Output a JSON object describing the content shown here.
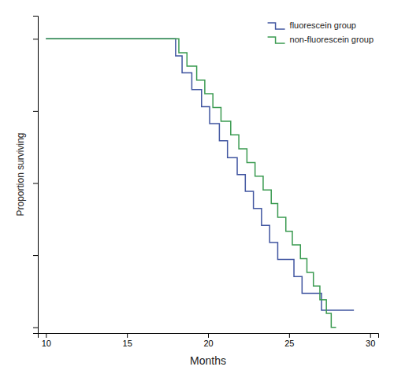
{
  "chart_data": {
    "type": "step",
    "xlabel": "Months",
    "ylabel": "Proportion surviving",
    "xlim": [
      9.5,
      30.5
    ],
    "ylim": [
      -0.02,
      1.08
    ],
    "xticks": [
      10,
      15,
      20,
      25,
      30
    ],
    "yticks": [
      0.0,
      0.25,
      0.5,
      0.75,
      1.0
    ],
    "tick_labels": "x",
    "grid": false,
    "legend": "upper-right",
    "series": [
      {
        "name": "fluorescein group",
        "color": "#4055a0",
        "line_style": "solid",
        "x": [
          10.0,
          17.8,
          18.0,
          18.4,
          19.0,
          19.6,
          20.1,
          20.7,
          21.2,
          21.8,
          22.3,
          22.8,
          23.3,
          23.8,
          24.3,
          24.8,
          25.3,
          25.8,
          26.3,
          27.0,
          27.5,
          28.0,
          29.0
        ],
        "values": [
          1.0,
          1.0,
          0.941,
          0.882,
          0.824,
          0.765,
          0.706,
          0.647,
          0.588,
          0.529,
          0.471,
          0.412,
          0.353,
          0.294,
          0.235,
          0.235,
          0.176,
          0.118,
          0.118,
          0.059,
          0.059,
          0.059,
          0.059
        ]
      },
      {
        "name": "non-fluorescein group",
        "color": "#3a9a50",
        "line_style": "solid",
        "x": [
          10.0,
          17.8,
          18.2,
          18.7,
          19.3,
          19.8,
          20.3,
          20.8,
          21.4,
          21.9,
          22.4,
          22.9,
          23.4,
          23.9,
          24.3,
          24.8,
          25.2,
          25.7,
          26.1,
          26.5,
          26.9,
          27.3,
          27.6,
          27.9
        ],
        "values": [
          1.0,
          1.0,
          0.952,
          0.905,
          0.857,
          0.81,
          0.762,
          0.714,
          0.667,
          0.619,
          0.571,
          0.524,
          0.476,
          0.429,
          0.381,
          0.333,
          0.286,
          0.238,
          0.19,
          0.143,
          0.095,
          0.048,
          0.0,
          0.0
        ]
      }
    ]
  }
}
